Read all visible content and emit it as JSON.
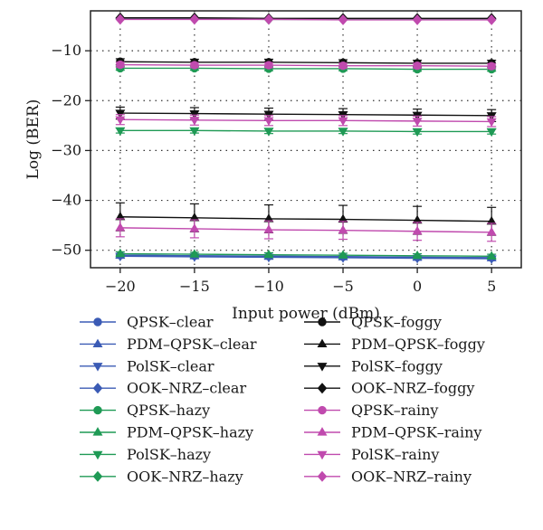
{
  "chart_data": {
    "type": "line",
    "xlabel": "Input power (dBm)",
    "ylabel": "Log (BER)",
    "x": [
      -20,
      -15,
      -10,
      -5,
      0,
      5
    ],
    "xlim": [
      -22,
      7
    ],
    "ylim": [
      -53.5,
      -2
    ],
    "xticks": [
      -20,
      -15,
      -10,
      -5,
      0,
      5
    ],
    "yticks": [
      -10,
      -20,
      -30,
      -40,
      -50
    ],
    "grid": true,
    "legend_position": "bottom",
    "colors": {
      "clear": "#3b5bb5",
      "hazy": "#1f9a55",
      "foggy": "#111111",
      "rainy": "#c04aae"
    },
    "series": [
      {
        "name": "QPSK–clear",
        "marker": "circle",
        "color": "#3b5bb5",
        "values": [
          -51.0,
          -51.1,
          -51.2,
          -51.3,
          -51.4,
          -51.5
        ]
      },
      {
        "name": "PDM–QPSK–clear",
        "marker": "triangle-up",
        "color": "#3b5bb5",
        "values": [
          -51.0,
          -51.1,
          -51.2,
          -51.3,
          -51.4,
          -51.5
        ]
      },
      {
        "name": "PolSK–clear",
        "marker": "triangle-down",
        "color": "#3b5bb5",
        "values": [
          -51.2,
          -51.3,
          -51.4,
          -51.5,
          -51.6,
          -51.7
        ]
      },
      {
        "name": "OOK–NRZ–clear",
        "marker": "diamond",
        "color": "#3b5bb5",
        "values": [
          -3.5,
          -3.5,
          -3.6,
          -3.6,
          -3.6,
          -3.6
        ]
      },
      {
        "name": "QPSK–hazy",
        "marker": "circle",
        "color": "#1f9a55",
        "values": [
          -13.5,
          -13.5,
          -13.6,
          -13.6,
          -13.7,
          -13.7
        ]
      },
      {
        "name": "PDM–QPSK–hazy",
        "marker": "triangle-up",
        "color": "#1f9a55",
        "values": [
          -50.7,
          -50.8,
          -50.9,
          -51.0,
          -51.1,
          -51.2
        ]
      },
      {
        "name": "PolSK–hazy",
        "marker": "triangle-down",
        "color": "#1f9a55",
        "values": [
          -26.0,
          -26.0,
          -26.1,
          -26.1,
          -26.2,
          -26.2
        ]
      },
      {
        "name": "OOK–NRZ–hazy",
        "marker": "diamond",
        "color": "#1f9a55",
        "values": [
          -3.6,
          -3.6,
          -3.7,
          -3.7,
          -3.7,
          -3.7
        ]
      },
      {
        "name": "QPSK–foggy",
        "marker": "circle",
        "color": "#111111",
        "values": [
          -12.2,
          -12.3,
          -12.3,
          -12.4,
          -12.5,
          -12.5
        ]
      },
      {
        "name": "PDM–QPSK–foggy",
        "marker": "triangle-up",
        "color": "#111111",
        "values": [
          -43.3,
          -43.5,
          -43.7,
          -43.8,
          -44.0,
          -44.2
        ]
      },
      {
        "name": "PolSK–foggy",
        "marker": "triangle-down",
        "color": "#111111",
        "values": [
          -22.5,
          -22.6,
          -22.7,
          -22.8,
          -22.9,
          -23.0
        ]
      },
      {
        "name": "OOK–NRZ–foggy",
        "marker": "diamond",
        "color": "#111111",
        "values": [
          -3.4,
          -3.4,
          -3.5,
          -3.5,
          -3.5,
          -3.5
        ]
      },
      {
        "name": "QPSK–rainy",
        "marker": "circle",
        "color": "#c04aae",
        "values": [
          -12.8,
          -12.9,
          -12.9,
          -13.0,
          -13.0,
          -13.1
        ]
      },
      {
        "name": "PDM–QPSK–rainy",
        "marker": "triangle-up",
        "color": "#c04aae",
        "values": [
          -45.5,
          -45.7,
          -45.9,
          -46.0,
          -46.2,
          -46.4
        ]
      },
      {
        "name": "PolSK–rainy",
        "marker": "triangle-down",
        "color": "#c04aae",
        "values": [
          -23.8,
          -23.9,
          -24.0,
          -24.0,
          -24.1,
          -24.2
        ]
      },
      {
        "name": "OOK–NRZ–rainy",
        "marker": "diamond",
        "color": "#c04aae",
        "values": [
          -3.7,
          -3.7,
          -3.7,
          -3.8,
          -3.8,
          -3.8
        ]
      }
    ],
    "error_bars": [
      {
        "series": "PDM–QPSK–foggy",
        "plus_minus": 2.8
      },
      {
        "series": "PDM–QPSK–rainy",
        "plus_minus": 1.8
      },
      {
        "series": "PolSK–foggy",
        "plus_minus": 1.2
      },
      {
        "series": "PolSK–rainy",
        "plus_minus": 1.0
      },
      {
        "series": "QPSK–foggy",
        "plus_minus": 0.6
      },
      {
        "series": "QPSK–rainy",
        "plus_minus": 0.5
      },
      {
        "series": "PolSK–hazy",
        "plus_minus": 0.5
      },
      {
        "series": "QPSK–hazy",
        "plus_minus": 0.4
      },
      {
        "series": "PDM–QPSK–hazy",
        "plus_minus": 0.4
      },
      {
        "series": "PolSK–clear",
        "plus_minus": 0.4
      }
    ]
  }
}
